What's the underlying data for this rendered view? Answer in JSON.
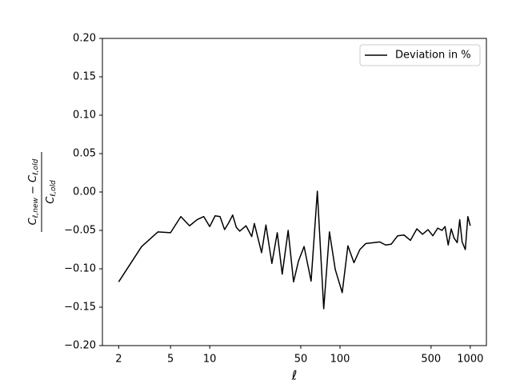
{
  "chart_data": {
    "type": "line",
    "x": [
      2,
      3,
      4,
      5,
      6,
      7,
      8,
      9,
      10,
      11,
      12,
      13,
      14,
      15,
      16,
      17,
      19,
      21,
      22,
      25,
      27,
      30,
      33,
      36,
      40,
      44,
      48,
      53,
      60,
      67,
      75,
      83,
      92,
      104,
      115,
      128,
      142,
      158,
      180,
      202,
      224,
      247,
      277,
      310,
      347,
      389,
      430,
      474,
      516,
      563,
      606,
      640,
      677,
      714,
      751,
      794,
      830,
      866,
      916,
      958,
      1000
    ],
    "series": [
      {
        "name": "Deviation in %",
        "color": "#000000",
        "values": [
          -0.117,
          -0.071,
          -0.052,
          -0.053,
          -0.032,
          -0.044,
          -0.036,
          -0.032,
          -0.045,
          -0.031,
          -0.032,
          -0.049,
          -0.04,
          -0.03,
          -0.046,
          -0.051,
          -0.044,
          -0.058,
          -0.041,
          -0.079,
          -0.043,
          -0.093,
          -0.053,
          -0.107,
          -0.05,
          -0.117,
          -0.09,
          -0.071,
          -0.116,
          0.001,
          -0.152,
          -0.052,
          -0.101,
          -0.131,
          -0.07,
          -0.092,
          -0.075,
          -0.067,
          -0.066,
          -0.065,
          -0.069,
          -0.068,
          -0.057,
          -0.056,
          -0.063,
          -0.048,
          -0.055,
          -0.049,
          -0.057,
          -0.047,
          -0.05,
          -0.045,
          -0.069,
          -0.048,
          -0.06,
          -0.066,
          -0.036,
          -0.065,
          -0.075,
          -0.032,
          -0.044
        ]
      }
    ],
    "xlabel": "ℓ",
    "ylabel": {
      "numerator": [
        "C",
        "ℓ,new",
        " − C",
        "ℓ,old"
      ],
      "denominator": [
        "C",
        "ℓ,old"
      ]
    },
    "xscale": "log",
    "xlim": [
      1.5,
      1330
    ],
    "xticks": [
      2,
      5,
      10,
      50,
      100,
      500,
      1000
    ],
    "ylim": [
      -0.2,
      0.2
    ],
    "yticks": [
      {
        "value": -0.2,
        "label": "−0.20"
      },
      {
        "value": -0.15,
        "label": "−0.15"
      },
      {
        "value": -0.1,
        "label": "−0.10"
      },
      {
        "value": -0.05,
        "label": "−0.05"
      },
      {
        "value": 0,
        "label": "0.00"
      },
      {
        "value": 0.05,
        "label": "0.05"
      },
      {
        "value": 0.1,
        "label": "0.10"
      },
      {
        "value": 0.15,
        "label": "0.15"
      },
      {
        "value": 0.2,
        "label": "0.20"
      }
    ],
    "legend": "upper right",
    "grid": false
  }
}
